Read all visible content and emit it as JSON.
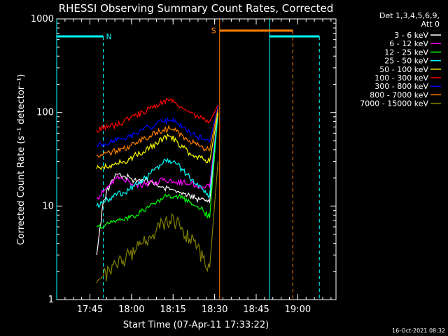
{
  "chart_data": {
    "type": "line",
    "title": "RHESSI Observing Summary Count Rates, Corrected",
    "xlabel": "Start Time (07-Apr-11 17:33:22)",
    "ylabel": "Corrected Count Rate (s⁻¹ detector⁻¹)",
    "yscale": "log",
    "ylim": [
      1,
      1000
    ],
    "xlim_minutes": [
      17.55,
      19.23
    ],
    "x_tick_labels": [
      "17:45",
      "18:00",
      "18:15",
      "18:30",
      "18:45",
      "19:00"
    ],
    "x_tick_minutes": [
      17.75,
      18.0,
      18.25,
      18.5,
      18.75,
      19.0
    ],
    "y_tick_labels": [
      "1",
      "10",
      "100",
      "1000"
    ],
    "y_tick_values": [
      1,
      10,
      100,
      1000
    ],
    "legend_header": [
      "Det 1,3,4,5,6,9,",
      "Att 0"
    ],
    "legend_position": "right",
    "timestamp": "16-Oct-2021 08:32",
    "series": [
      {
        "name": "3 - 6 keV",
        "color": "#ffffff",
        "x": [
          17.79,
          17.83,
          17.87,
          17.91,
          17.95,
          17.99,
          18.03,
          18.07,
          18.11,
          18.15,
          18.19,
          18.23,
          18.27,
          18.31,
          18.35,
          18.39,
          18.43,
          18.47,
          18.52
        ],
        "y": [
          3,
          11,
          17,
          22,
          21,
          20,
          18,
          19,
          18,
          17,
          16,
          15,
          14,
          14,
          13,
          12,
          12,
          11,
          100
        ]
      },
      {
        "name": "6 - 12 keV",
        "color": "#ff00ff",
        "x": [
          17.79,
          17.83,
          17.87,
          17.91,
          17.95,
          17.99,
          18.03,
          18.07,
          18.11,
          18.15,
          18.19,
          18.23,
          18.27,
          18.31,
          18.35,
          18.39,
          18.43,
          18.47,
          18.52
        ],
        "y": [
          12,
          14,
          17,
          20,
          19,
          18,
          17,
          17,
          18,
          18,
          19,
          19,
          18,
          18,
          17,
          17,
          16,
          16,
          100
        ]
      },
      {
        "name": "12 - 25 keV",
        "color": "#00ff00",
        "x": [
          17.79,
          17.83,
          17.87,
          17.91,
          17.95,
          17.99,
          18.03,
          18.07,
          18.11,
          18.15,
          18.19,
          18.23,
          18.27,
          18.31,
          18.35,
          18.39,
          18.43,
          18.47,
          18.52
        ],
        "y": [
          6,
          6,
          6.5,
          7,
          7,
          7.5,
          8,
          9,
          10,
          11,
          12,
          13,
          13,
          12,
          11,
          10,
          9,
          7.5,
          100
        ]
      },
      {
        "name": "25 - 50 keV",
        "color": "#00ffff",
        "x": [
          17.79,
          17.83,
          17.87,
          17.91,
          17.95,
          17.99,
          18.03,
          18.07,
          18.11,
          18.15,
          18.19,
          18.23,
          18.27,
          18.31,
          18.35,
          18.39,
          18.43,
          18.47,
          18.52
        ],
        "y": [
          10,
          11,
          12,
          13,
          14,
          15,
          17,
          19,
          22,
          26,
          29,
          31,
          28,
          24,
          20,
          17,
          15,
          13,
          100
        ]
      },
      {
        "name": "50 - 100 keV",
        "color": "#ffff00",
        "x": [
          17.79,
          17.83,
          17.87,
          17.91,
          17.95,
          17.99,
          18.03,
          18.07,
          18.11,
          18.15,
          18.19,
          18.23,
          18.27,
          18.31,
          18.35,
          18.39,
          18.43,
          18.47,
          18.52
        ],
        "y": [
          25,
          26,
          27,
          28,
          30,
          32,
          35,
          38,
          43,
          47,
          52,
          56,
          50,
          42,
          37,
          34,
          32,
          30,
          100
        ]
      },
      {
        "name": "100 - 300 keV",
        "color": "#ff0000",
        "x": [
          17.79,
          17.83,
          17.87,
          17.91,
          17.95,
          17.99,
          18.03,
          18.07,
          18.11,
          18.15,
          18.19,
          18.23,
          18.27,
          18.31,
          18.35,
          18.39,
          18.43,
          18.47,
          18.52
        ],
        "y": [
          65,
          67,
          70,
          73,
          78,
          85,
          93,
          100,
          110,
          120,
          130,
          135,
          125,
          110,
          100,
          92,
          85,
          80,
          120
        ]
      },
      {
        "name": "300 - 800 keV",
        "color": "#0000ff",
        "x": [
          17.79,
          17.83,
          17.87,
          17.91,
          17.95,
          17.99,
          18.03,
          18.07,
          18.11,
          18.15,
          18.19,
          18.23,
          18.27,
          18.31,
          18.35,
          18.39,
          18.43,
          18.47,
          18.52
        ],
        "y": [
          45,
          46,
          48,
          50,
          52,
          55,
          60,
          65,
          70,
          75,
          80,
          82,
          78,
          70,
          62,
          56,
          52,
          49,
          115
        ]
      },
      {
        "name": "800 - 7000 keV",
        "color": "#ff8000",
        "x": [
          17.79,
          17.83,
          17.87,
          17.91,
          17.95,
          17.99,
          18.03,
          18.07,
          18.11,
          18.15,
          18.19,
          18.23,
          18.27,
          18.31,
          18.35,
          18.39,
          18.43,
          18.47,
          18.52
        ],
        "y": [
          35,
          36,
          37,
          39,
          41,
          44,
          48,
          52,
          56,
          61,
          65,
          67,
          63,
          56,
          50,
          45,
          42,
          39,
          110
        ]
      },
      {
        "name": "7000 - 15000 keV",
        "color": "#808000",
        "x": [
          17.79,
          17.83,
          17.87,
          17.91,
          17.95,
          17.99,
          18.03,
          18.07,
          18.11,
          18.15,
          18.19,
          18.23,
          18.27,
          18.31,
          18.35,
          18.39,
          18.43,
          18.47,
          18.52
        ],
        "y": [
          1.5,
          1.8,
          2,
          2.3,
          2.6,
          3,
          3.5,
          4,
          4.8,
          5.5,
          6.5,
          7,
          6.5,
          5.5,
          4.5,
          3.5,
          2.8,
          2.2,
          30
        ]
      }
    ],
    "annotations": [
      {
        "label": "N",
        "color": "#00ffff",
        "bar_start": 17.55,
        "bar_end": 17.83,
        "bar_y": 650,
        "dashed_at": 17.83
      },
      {
        "label": "",
        "color": "#00ffff",
        "bar_start": 18.83,
        "bar_end": 19.13,
        "bar_y": 650,
        "dashed_at": 19.13
      },
      {
        "label": "S",
        "color": "#ff8000",
        "bar_start": 18.53,
        "bar_end": 18.97,
        "bar_y": 750,
        "dashed_at": 18.97
      }
    ],
    "solid_markers": [
      {
        "x": 17.55,
        "color": "#00ffff"
      },
      {
        "x": 18.53,
        "color": "#ff8000"
      },
      {
        "x": 18.83,
        "color": "#00ffff"
      }
    ]
  }
}
